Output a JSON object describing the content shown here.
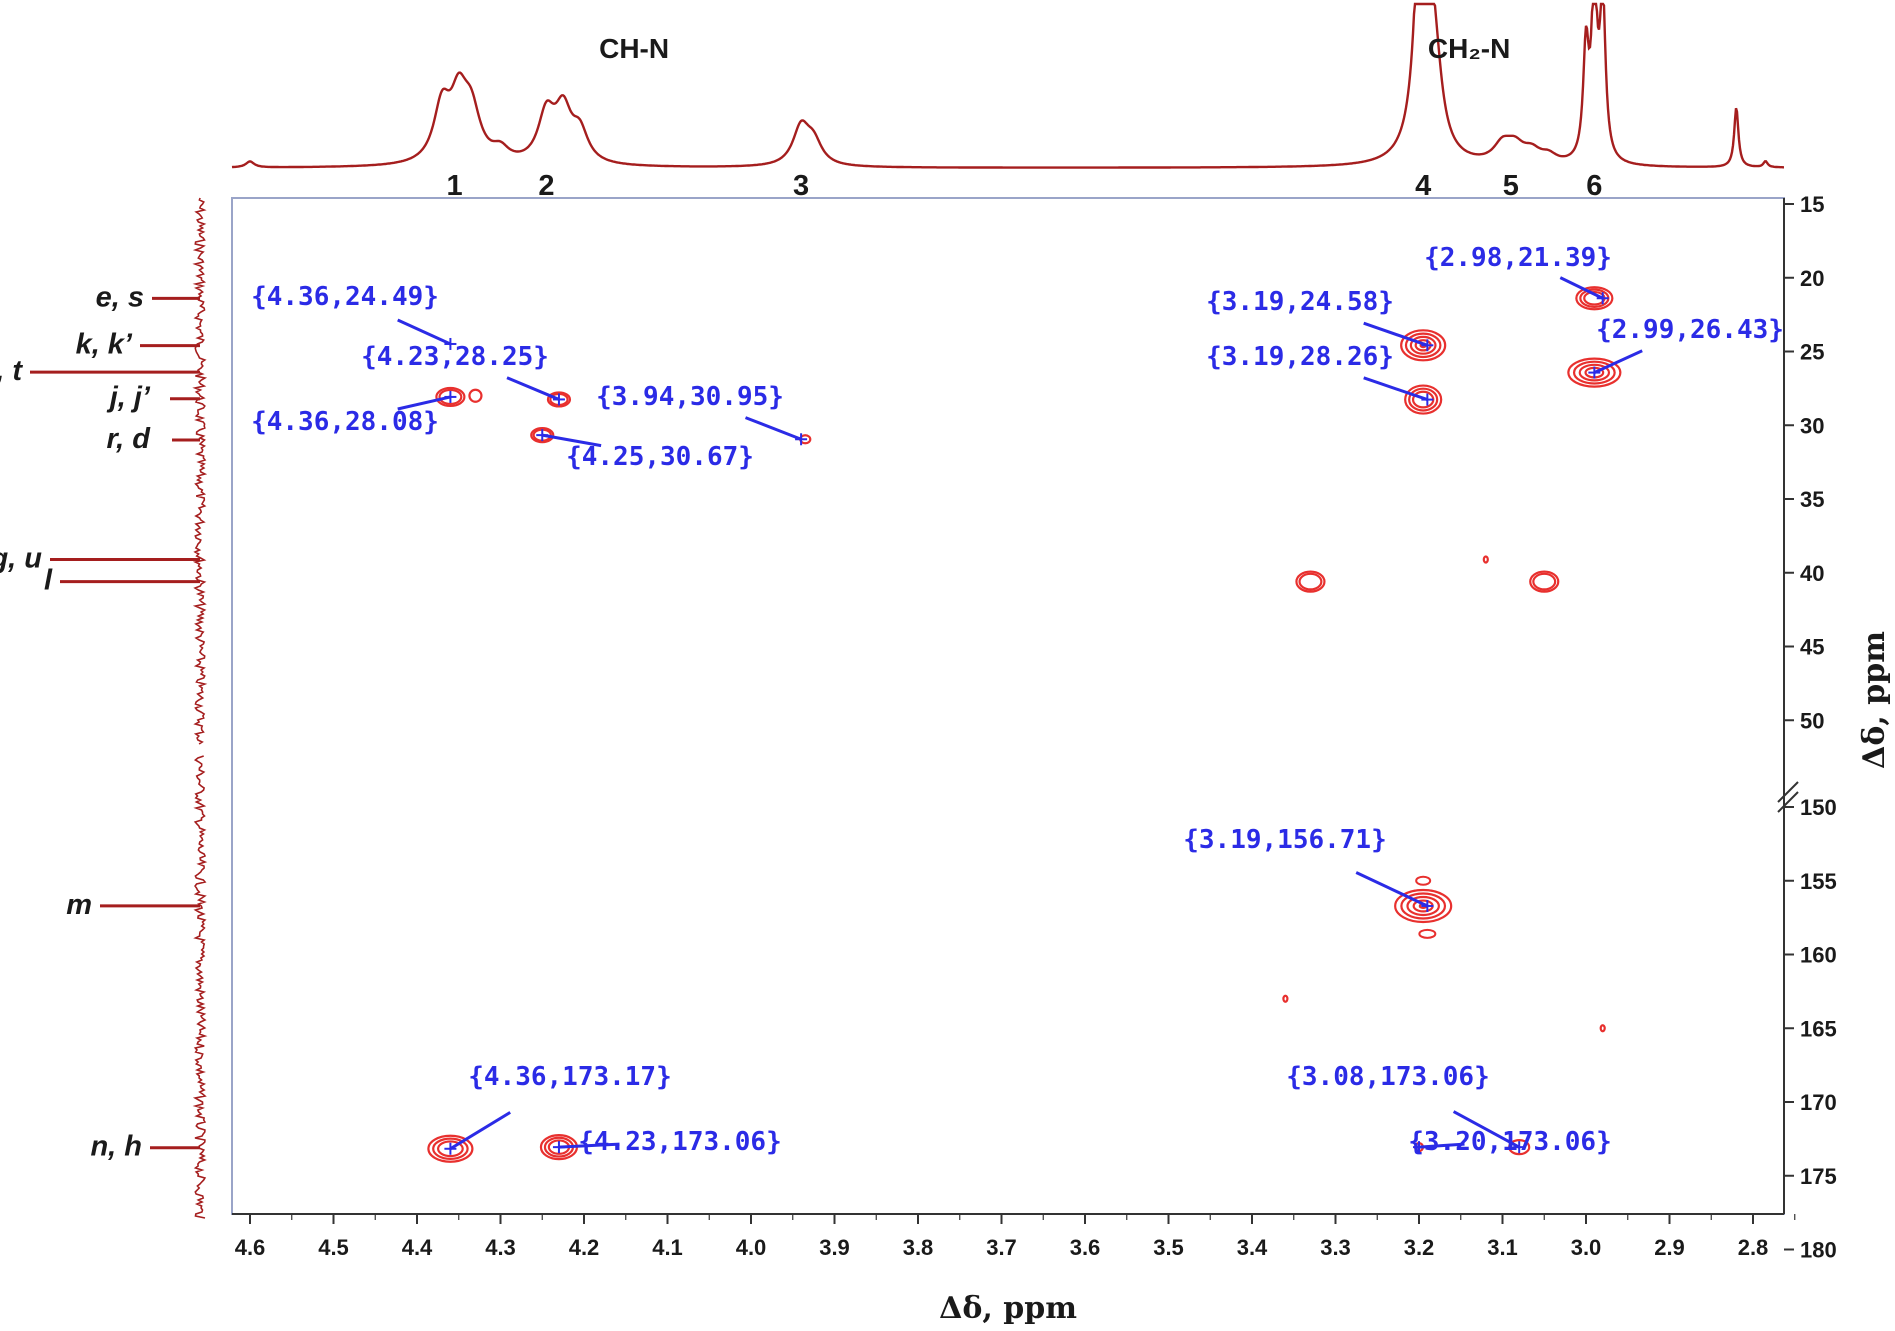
{
  "chart_data": {
    "type": "scatter",
    "title": "",
    "xlabel": "Δδ, ppm",
    "ylabel": "Δδ, ppm",
    "xlim": [
      4.63,
      2.72
    ],
    "ylim_segments": [
      [
        15,
        52
      ],
      [
        149,
        180
      ]
    ],
    "x_ticks": [
      4.6,
      4.5,
      4.4,
      4.3,
      4.2,
      4.1,
      4.0,
      3.9,
      3.8,
      3.7,
      3.6,
      3.5,
      3.4,
      3.3,
      3.2,
      3.1,
      3.0,
      2.9,
      2.8
    ],
    "y_ticks_upper": [
      15,
      20,
      25,
      30,
      35,
      40,
      45,
      50
    ],
    "y_ticks_lower": [
      150,
      155,
      160,
      165,
      170,
      175,
      180
    ],
    "proton_groups": [
      {
        "label": "CH-N",
        "x": 4.14
      },
      {
        "label": "CH₂-N",
        "x": 3.14
      }
    ],
    "proton_peaks": [
      {
        "label": "1",
        "x": 4.355
      },
      {
        "label": "2",
        "x": 4.245
      },
      {
        "label": "3",
        "x": 3.94
      },
      {
        "label": "4",
        "x": 3.195
      },
      {
        "label": "5",
        "x": 3.09
      },
      {
        "label": "6",
        "x": 2.99
      }
    ],
    "carbon_peaks": [
      {
        "label": "e, s",
        "y": 21.4
      },
      {
        "label": "k, k’",
        "y": 24.6
      },
      {
        "label": "f, t",
        "y": 26.4
      },
      {
        "label": "j, j’",
        "y": 28.2
      },
      {
        "label": "r, d",
        "y": 31.0
      },
      {
        "label": "g, u",
        "y": 39.1
      },
      {
        "label": "l",
        "y": 40.6
      },
      {
        "label": "m",
        "y": 156.7
      },
      {
        "label": "n, h",
        "y": 173.1
      }
    ],
    "cross_peaks": [
      {
        "label": "{4.36,24.49}",
        "x": 4.36,
        "y": 24.49
      },
      {
        "label": "{4.23,28.25}",
        "x": 4.23,
        "y": 28.25
      },
      {
        "label": "{4.36,28.08}",
        "x": 4.36,
        "y": 28.08
      },
      {
        "label": "{3.94,30.95}",
        "x": 3.94,
        "y": 30.95
      },
      {
        "label": "{4.25,30.67}",
        "x": 4.25,
        "y": 30.67
      },
      {
        "label": "{2.98,21.39}",
        "x": 2.98,
        "y": 21.39
      },
      {
        "label": "{3.19,24.58}",
        "x": 3.19,
        "y": 24.58
      },
      {
        "label": "{2.99,26.43}",
        "x": 2.99,
        "y": 26.43
      },
      {
        "label": "{3.19,28.26}",
        "x": 3.19,
        "y": 28.26
      },
      {
        "label": "{3.19,156.71}",
        "x": 3.19,
        "y": 156.71
      },
      {
        "label": "{4.36,173.17}",
        "x": 4.36,
        "y": 173.17
      },
      {
        "label": "{4.23,173.06}",
        "x": 4.23,
        "y": 173.06
      },
      {
        "label": "{3.08,173.06}",
        "x": 3.08,
        "y": 173.06
      },
      {
        "label": "{3.20,173.06}",
        "x": 3.2,
        "y": 173.06
      }
    ],
    "unlabeled_correlations": [
      {
        "x": 3.33,
        "y": 40.6
      },
      {
        "x": 3.05,
        "y": 40.6
      },
      {
        "x": 3.12,
        "y": 39.1
      },
      {
        "x": 3.36,
        "y": 163.0
      },
      {
        "x": 2.98,
        "y": 165.0
      }
    ],
    "grid": false,
    "colors": {
      "spectrum": "#a51e1e",
      "contour": "#e8302e",
      "annotation": "#2b2be6",
      "frame": "#9aa4c8"
    }
  }
}
